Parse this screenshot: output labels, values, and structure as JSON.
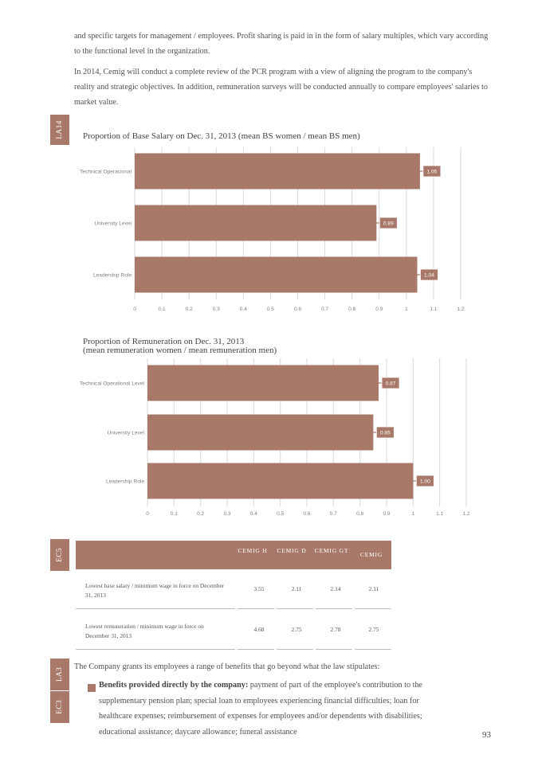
{
  "intro_text": {
    "p1": "and specific targets for management / employees. Profit sharing is paid in in the form of salary multiples, which vary according to the functional level in the organization.",
    "p2": "In 2014, Cemig will conduct a complete review of the PCR program with a view of aligning the program to the company's reality and strategic objectives. In addition, remuneration surveys will be conducted annually to compare employees' salaries to market value."
  },
  "tags": {
    "la14": "LA14",
    "ec5": "EC5",
    "la3": "LA3",
    "ec3": "EC3"
  },
  "colors": {
    "bar": "#a87868",
    "grid": "#d9d9d9",
    "label": "#7f7f7f"
  },
  "chart_data": [
    {
      "type": "bar",
      "orientation": "horizontal",
      "title": "Proportion of Base Salary on Dec. 31, 2013 (mean BS women / mean BS men)",
      "categories": [
        "Technical Operacional",
        "University Level",
        "Leadership Role"
      ],
      "values": [
        1.05,
        0.89,
        1.04
      ],
      "value_labels": [
        "1.05",
        "0.89",
        "1.04"
      ],
      "xlim": [
        0,
        1.2
      ],
      "ticks": [
        "0",
        "0.1",
        "0.2",
        "0.3",
        "0.4",
        "0.5",
        "0.6",
        "0.7",
        "0.8",
        "0.9",
        "1",
        "1.1",
        "1.2"
      ],
      "grid": true
    },
    {
      "type": "bar",
      "orientation": "horizontal",
      "title": "Proportion of Remuneration on Dec. 31, 2013",
      "subtitle": "(mean remuneration women / mean remuneration men)",
      "categories": [
        "Technical Operational Level",
        "University Level",
        "Leadership Role"
      ],
      "values": [
        0.87,
        0.85,
        1.0
      ],
      "value_labels": [
        "0.87",
        "0.85",
        "1.00"
      ],
      "xlim": [
        0,
        1.2
      ],
      "ticks": [
        "0",
        "0.1",
        "0.2",
        "0.3",
        "0.4",
        "0.5",
        "0.6",
        "0.7",
        "0.8",
        "0.9",
        "1",
        "1.1",
        "1.2"
      ],
      "grid": true
    }
  ],
  "table": {
    "headers": [
      "CEMIG H",
      "CEMIG D",
      "CEMIG GT",
      "CEMIG"
    ],
    "rows": [
      {
        "label": "Lowest base salary / minimum wage in force on December 31, 2013",
        "values": [
          "3.55",
          "2.11",
          "2.14",
          "2.11"
        ]
      },
      {
        "label": "Lowest remuneration / minimum wage in force on December 31, 2013",
        "values": [
          "4.68",
          "2.75",
          "2.78",
          "2.75"
        ]
      }
    ]
  },
  "benefits": {
    "intro": "The Company grants its employees a range of benefits that go beyond what the law stipulates:",
    "bullet_title": "Benefits provided directly by the company:",
    "bullet_text": "payment of part of the employee's contribution to the supplementary pension plan; special loan to employees experiencing financial difficulties; loan for healthcare expenses; reimbursement of expenses for employees and/or dependents with disabilities; educational assistance; daycare allowance; funeral assistance"
  },
  "page_number": "93"
}
